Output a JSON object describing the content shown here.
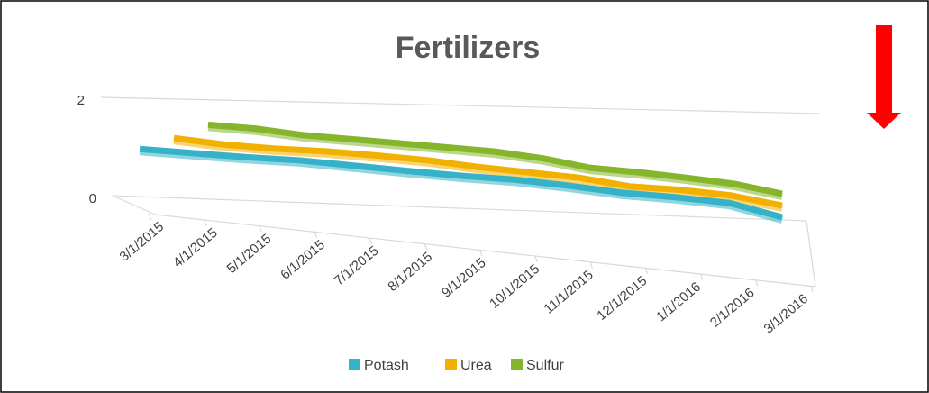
{
  "chart_data": {
    "type": "line3d",
    "title": "Fertilizers",
    "categories": [
      "3/1/2015",
      "4/1/2015",
      "5/1/2015",
      "6/1/2015",
      "7/1/2015",
      "8/1/2015",
      "9/1/2015",
      "10/1/2015",
      "11/1/2015",
      "12/1/2015",
      "1/1/2016",
      "2/1/2016",
      "3/1/2016"
    ],
    "series": [
      {
        "name": "Potash",
        "color": "#36b2c8",
        "values": [
          1.05,
          1.0,
          0.95,
          0.92,
          0.85,
          0.78,
          0.72,
          0.68,
          0.6,
          0.5,
          0.45,
          0.38,
          0.15
        ]
      },
      {
        "name": "Urea",
        "color": "#f2b100",
        "values": [
          1.2,
          1.1,
          1.05,
          1.03,
          0.98,
          0.92,
          0.82,
          0.75,
          0.68,
          0.55,
          0.52,
          0.45,
          0.3
        ]
      },
      {
        "name": "Sulfur",
        "color": "#85b52b",
        "values": [
          1.4,
          1.35,
          1.25,
          1.2,
          1.15,
          1.1,
          1.05,
          0.95,
          0.8,
          0.75,
          0.68,
          0.6,
          0.45
        ]
      }
    ],
    "ylim": [
      0,
      2
    ],
    "yticks": [
      0,
      2
    ],
    "grid": true,
    "legend": "bottom"
  }
}
